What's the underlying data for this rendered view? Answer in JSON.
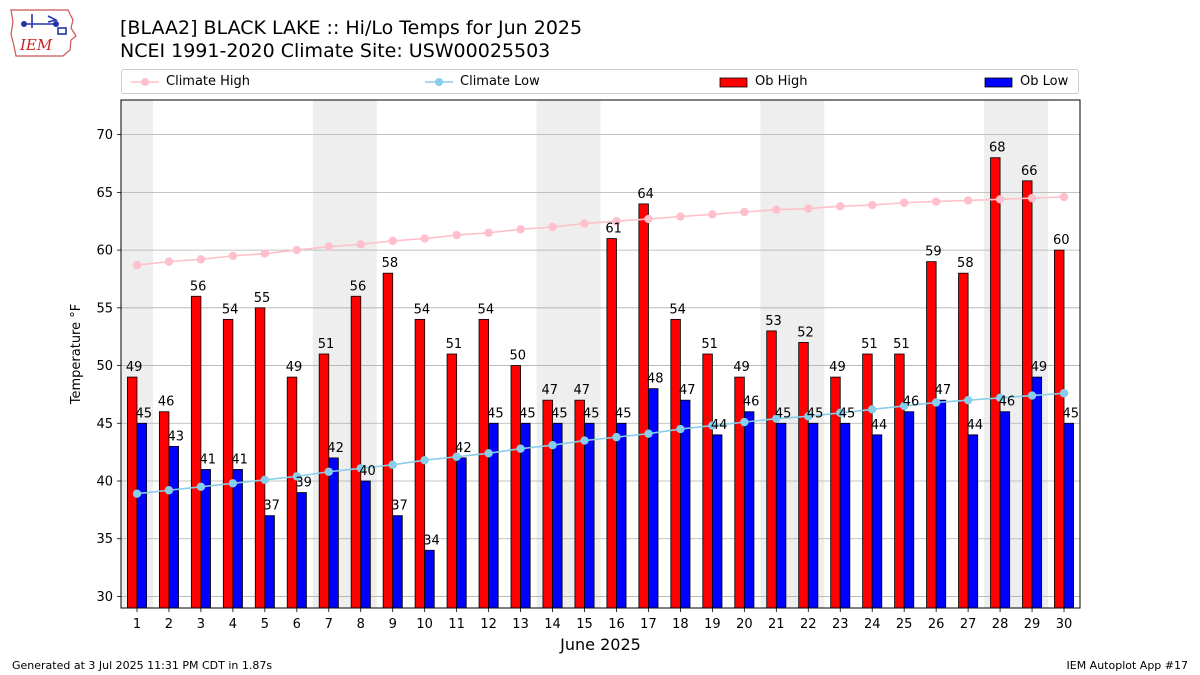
{
  "header": {
    "title_line1": "[BLAA2] BLACK LAKE :: Hi/Lo Temps for Jun 2025",
    "title_line2": "NCEI 1991-2020 Climate Site: USW00025503",
    "logo_text": "IEM"
  },
  "footer": {
    "generated": "Generated at 3 Jul 2025 11:31 PM CDT in 1.87s",
    "app": "IEM Autoplot App #17"
  },
  "colors": {
    "ob_high": "#ff0000",
    "ob_low": "#0000ff",
    "climate_high": "#ffc0cb",
    "climate_low": "#87ceeb",
    "weekend_band": "#eeeeee",
    "grid": "#b0b0b0"
  },
  "chart_data": {
    "type": "bar",
    "xlabel": "June 2025",
    "ylabel": "Temperature °F",
    "ylim": [
      29,
      73
    ],
    "yticks": [
      30,
      35,
      40,
      45,
      50,
      55,
      60,
      65,
      70
    ],
    "grid": "horizontal",
    "legend_position": "top",
    "categories": [
      "1",
      "2",
      "3",
      "4",
      "5",
      "6",
      "7",
      "8",
      "9",
      "10",
      "11",
      "12",
      "13",
      "14",
      "15",
      "16",
      "17",
      "18",
      "19",
      "20",
      "21",
      "22",
      "23",
      "24",
      "25",
      "26",
      "27",
      "28",
      "29",
      "30"
    ],
    "shaded_days": [
      1,
      7,
      8,
      14,
      15,
      21,
      22,
      28,
      29
    ],
    "series": [
      {
        "name": "Ob High",
        "kind": "bar",
        "values": [
          49,
          46,
          56,
          54,
          55,
          49,
          51,
          56,
          58,
          54,
          51,
          54,
          50,
          47,
          47,
          61,
          64,
          54,
          51,
          49,
          53,
          52,
          49,
          51,
          51,
          59,
          58,
          68,
          66,
          60
        ]
      },
      {
        "name": "Ob Low",
        "kind": "bar",
        "values": [
          45,
          43,
          41,
          41,
          37,
          39,
          42,
          40,
          37,
          34,
          42,
          45,
          45,
          45,
          45,
          45,
          48,
          47,
          44,
          46,
          45,
          45,
          45,
          44,
          46,
          47,
          44,
          46,
          49,
          45
        ]
      },
      {
        "name": "Climate High",
        "kind": "line",
        "values": [
          58.7,
          59.0,
          59.2,
          59.5,
          59.7,
          60.0,
          60.3,
          60.5,
          60.8,
          61.0,
          61.3,
          61.5,
          61.8,
          62.0,
          62.3,
          62.5,
          62.7,
          62.9,
          63.1,
          63.3,
          63.5,
          63.6,
          63.8,
          63.9,
          64.1,
          64.2,
          64.3,
          64.4,
          64.5,
          64.6
        ]
      },
      {
        "name": "Climate Low",
        "kind": "line",
        "values": [
          38.9,
          39.2,
          39.5,
          39.8,
          40.1,
          40.4,
          40.8,
          41.1,
          41.4,
          41.8,
          42.1,
          42.4,
          42.8,
          43.1,
          43.5,
          43.8,
          44.1,
          44.5,
          44.8,
          45.1,
          45.4,
          45.6,
          45.9,
          46.2,
          46.5,
          46.8,
          47.0,
          47.2,
          47.4,
          47.6
        ]
      }
    ]
  }
}
